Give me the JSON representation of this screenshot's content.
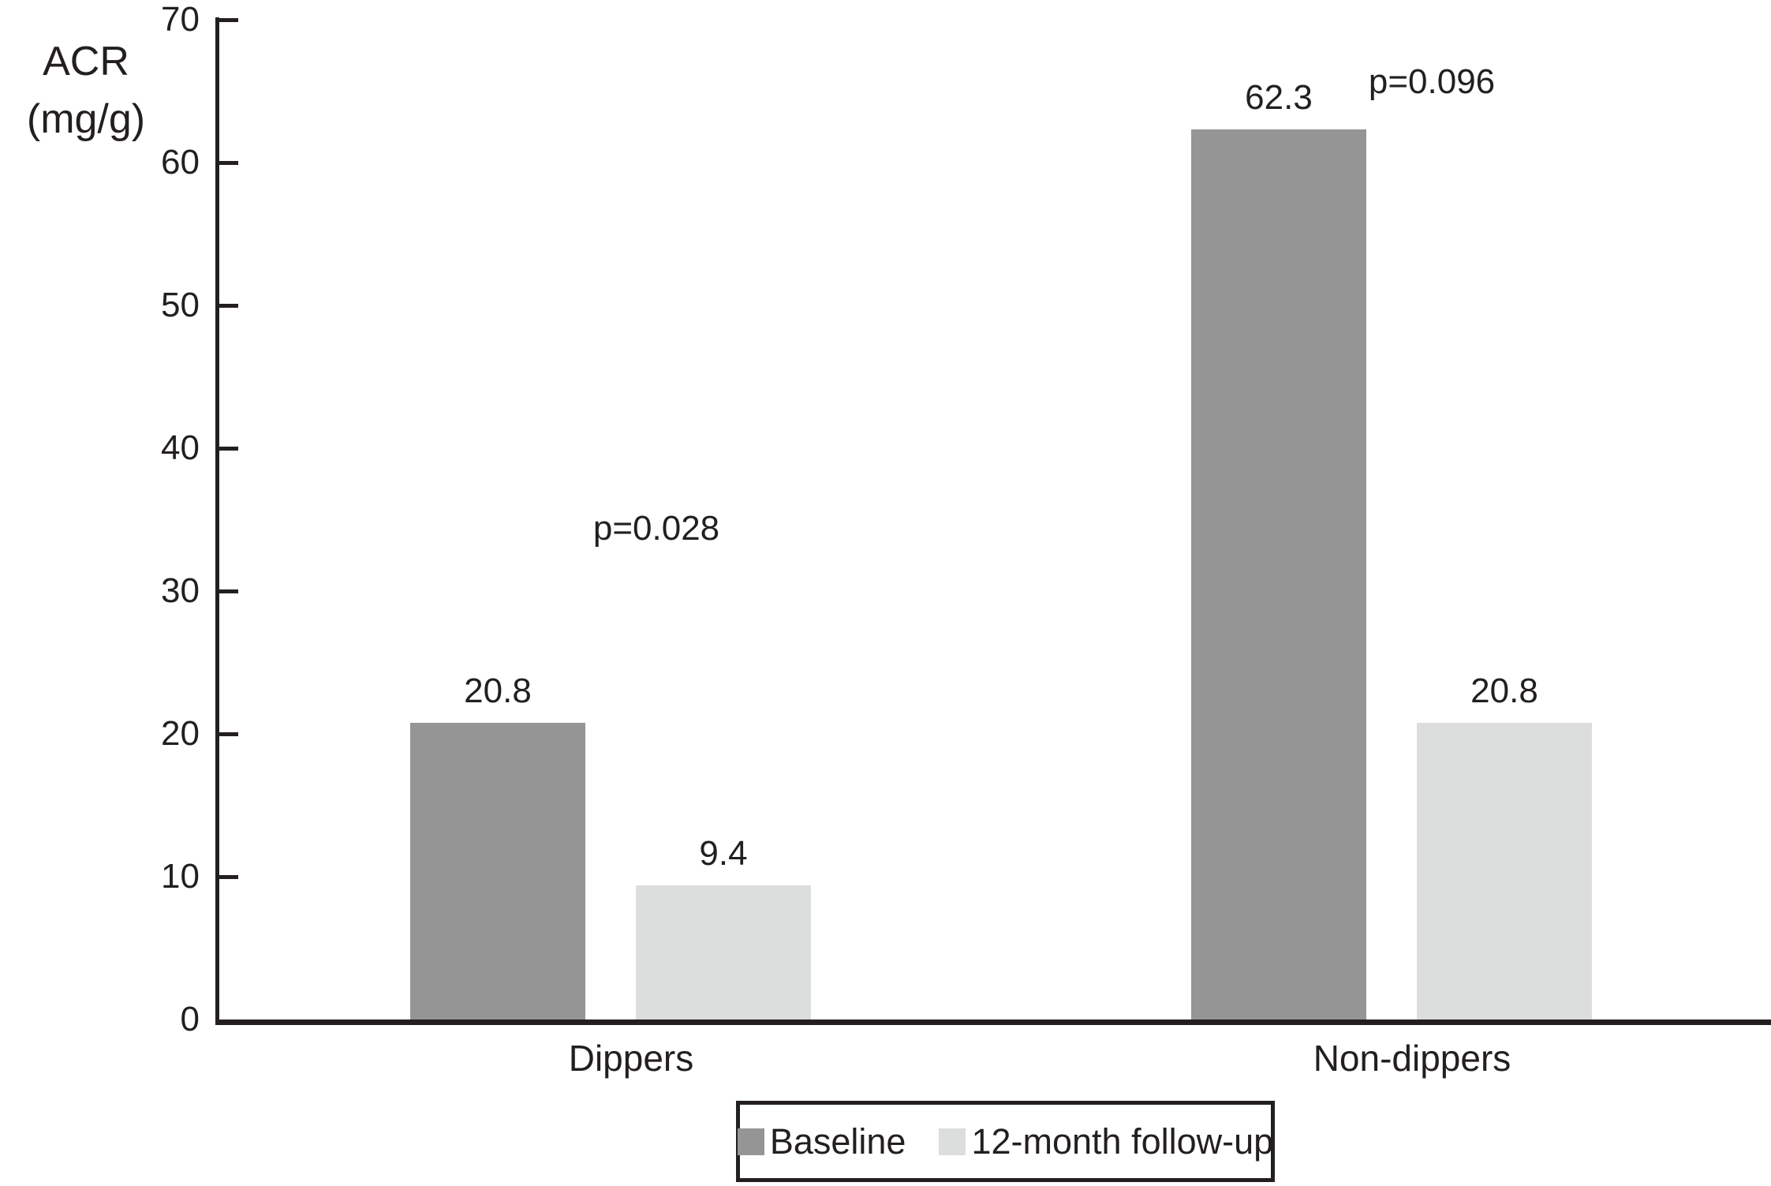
{
  "chart_data": {
    "type": "bar",
    "title": "",
    "ylabel": "ACR\n(mg/g)",
    "xlabel": "",
    "ylim": [
      0,
      70
    ],
    "ytick_step": 10,
    "ytick_labels": [
      "0",
      "10",
      "20",
      "30",
      "40",
      "50",
      "60",
      "70"
    ],
    "categories": [
      "Dippers",
      "Non-dippers"
    ],
    "series": [
      {
        "name": "Baseline",
        "color": "#959595",
        "values": [
          20.8,
          62.3
        ],
        "value_labels": [
          "20.8",
          "62.3"
        ]
      },
      {
        "name": "12-month follow-up",
        "color": "#dcdddd",
        "values": [
          9.4,
          20.8
        ],
        "value_labels": [
          "9.4",
          "20.8"
        ]
      }
    ],
    "annotations": [
      {
        "text": "p=0.028",
        "category": "Dippers"
      },
      {
        "text": "p=0.096",
        "category": "Non-dippers"
      }
    ],
    "axis_color": "#231f20",
    "background": "#ffffff",
    "grid": false,
    "legend_position": "bottom-center",
    "legend_border": true
  }
}
